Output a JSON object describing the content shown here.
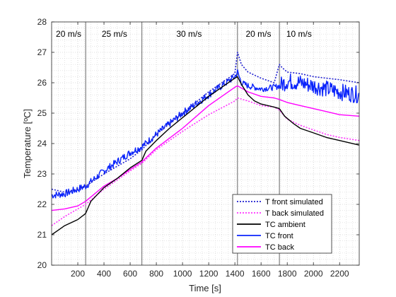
{
  "chart_data": {
    "type": "line",
    "title": "",
    "xlabel": "Time [s]",
    "ylabel": "Temperature [ºC]",
    "xlim": [
      0,
      2350
    ],
    "ylim": [
      20,
      28
    ],
    "xticks": [
      200,
      400,
      600,
      800,
      1000,
      1200,
      1400,
      1600,
      1800,
      2000,
      2200
    ],
    "yticks": [
      20,
      21,
      22,
      23,
      24,
      25,
      26,
      27,
      28
    ],
    "grid": "minor-dotted",
    "legend_position": "bottom-right",
    "vertical_lines": [
      260,
      690,
      1420,
      1740
    ],
    "regions": [
      {
        "label": "20 m/s",
        "x": 130
      },
      {
        "label": "25 m/s",
        "x": 480
      },
      {
        "label": "30 m/s",
        "x": 1050
      },
      {
        "label": "20 m/s",
        "x": 1580
      },
      {
        "label": "10 m/s",
        "x": 1890
      }
    ],
    "series": [
      {
        "name": "T front simulated",
        "color": "#1f1fd0",
        "style": "dotted",
        "points": [
          [
            0,
            22.5
          ],
          [
            100,
            22.4
          ],
          [
            200,
            22.5
          ],
          [
            260,
            22.6
          ],
          [
            400,
            23.0
          ],
          [
            600,
            23.5
          ],
          [
            690,
            23.8
          ],
          [
            800,
            24.3
          ],
          [
            1000,
            25.0
          ],
          [
            1200,
            25.7
          ],
          [
            1400,
            26.3
          ],
          [
            1420,
            27.0
          ],
          [
            1450,
            26.6
          ],
          [
            1500,
            26.35
          ],
          [
            1600,
            26.15
          ],
          [
            1700,
            26.0
          ],
          [
            1740,
            26.6
          ],
          [
            1760,
            26.5
          ],
          [
            1800,
            26.35
          ],
          [
            1900,
            26.3
          ],
          [
            2000,
            26.2
          ],
          [
            2100,
            26.15
          ],
          [
            2200,
            26.1
          ],
          [
            2350,
            26.0
          ]
        ]
      },
      {
        "name": "T back simulated",
        "color": "#ff33ff",
        "style": "dotted",
        "points": [
          [
            0,
            21.3
          ],
          [
            100,
            21.6
          ],
          [
            200,
            21.85
          ],
          [
            260,
            22.0
          ],
          [
            400,
            22.5
          ],
          [
            600,
            23.1
          ],
          [
            690,
            23.35
          ],
          [
            800,
            23.8
          ],
          [
            1000,
            24.4
          ],
          [
            1200,
            24.95
          ],
          [
            1400,
            25.4
          ],
          [
            1420,
            25.5
          ],
          [
            1500,
            25.4
          ],
          [
            1600,
            25.25
          ],
          [
            1700,
            25.2
          ],
          [
            1740,
            25.1
          ],
          [
            1800,
            24.8
          ],
          [
            1900,
            24.6
          ],
          [
            2000,
            24.45
          ],
          [
            2100,
            24.3
          ],
          [
            2200,
            24.2
          ],
          [
            2350,
            24.1
          ]
        ]
      },
      {
        "name": "TC ambient",
        "color": "#000000",
        "style": "solid",
        "points": [
          [
            0,
            21.0
          ],
          [
            50,
            21.15
          ],
          [
            100,
            21.3
          ],
          [
            200,
            21.5
          ],
          [
            260,
            21.7
          ],
          [
            300,
            22.1
          ],
          [
            400,
            22.55
          ],
          [
            500,
            22.85
          ],
          [
            600,
            23.2
          ],
          [
            690,
            23.45
          ],
          [
            720,
            23.75
          ],
          [
            800,
            24.1
          ],
          [
            900,
            24.5
          ],
          [
            1000,
            24.85
          ],
          [
            1100,
            25.2
          ],
          [
            1200,
            25.55
          ],
          [
            1300,
            25.85
          ],
          [
            1400,
            26.15
          ],
          [
            1420,
            26.2
          ],
          [
            1450,
            25.95
          ],
          [
            1500,
            25.6
          ],
          [
            1550,
            25.4
          ],
          [
            1600,
            25.3
          ],
          [
            1700,
            25.2
          ],
          [
            1740,
            25.15
          ],
          [
            1780,
            24.9
          ],
          [
            1850,
            24.65
          ],
          [
            1900,
            24.5
          ],
          [
            2000,
            24.35
          ],
          [
            2100,
            24.2
          ],
          [
            2200,
            24.1
          ],
          [
            2350,
            23.95
          ]
        ]
      },
      {
        "name": "TC front",
        "color": "#0b24fb",
        "style": "solid",
        "noisy": true,
        "points": [
          [
            0,
            22.3
          ],
          [
            100,
            22.35
          ],
          [
            200,
            22.5
          ],
          [
            260,
            22.6
          ],
          [
            400,
            23.1
          ],
          [
            500,
            23.4
          ],
          [
            600,
            23.7
          ],
          [
            690,
            23.9
          ],
          [
            800,
            24.3
          ],
          [
            1000,
            25.0
          ],
          [
            1200,
            25.6
          ],
          [
            1400,
            26.2
          ],
          [
            1420,
            26.35
          ],
          [
            1450,
            26.0
          ],
          [
            1500,
            25.9
          ],
          [
            1600,
            25.8
          ],
          [
            1700,
            25.85
          ],
          [
            1740,
            25.9
          ],
          [
            1800,
            26.05
          ],
          [
            1900,
            26.0
          ],
          [
            2000,
            25.9
          ],
          [
            2100,
            25.8
          ],
          [
            2200,
            25.7
          ],
          [
            2350,
            25.6
          ]
        ]
      },
      {
        "name": "TC back",
        "color": "#ff00ff",
        "style": "solid",
        "points": [
          [
            0,
            21.8
          ],
          [
            100,
            21.85
          ],
          [
            200,
            21.95
          ],
          [
            260,
            22.1
          ],
          [
            400,
            22.6
          ],
          [
            500,
            22.85
          ],
          [
            600,
            23.15
          ],
          [
            690,
            23.4
          ],
          [
            800,
            23.85
          ],
          [
            1000,
            24.5
          ],
          [
            1200,
            25.25
          ],
          [
            1400,
            25.85
          ],
          [
            1420,
            25.9
          ],
          [
            1500,
            25.7
          ],
          [
            1600,
            25.55
          ],
          [
            1700,
            25.5
          ],
          [
            1740,
            25.45
          ],
          [
            1800,
            25.35
          ],
          [
            1900,
            25.25
          ],
          [
            2000,
            25.15
          ],
          [
            2100,
            25.05
          ],
          [
            2200,
            24.95
          ],
          [
            2350,
            24.9
          ]
        ]
      }
    ]
  }
}
